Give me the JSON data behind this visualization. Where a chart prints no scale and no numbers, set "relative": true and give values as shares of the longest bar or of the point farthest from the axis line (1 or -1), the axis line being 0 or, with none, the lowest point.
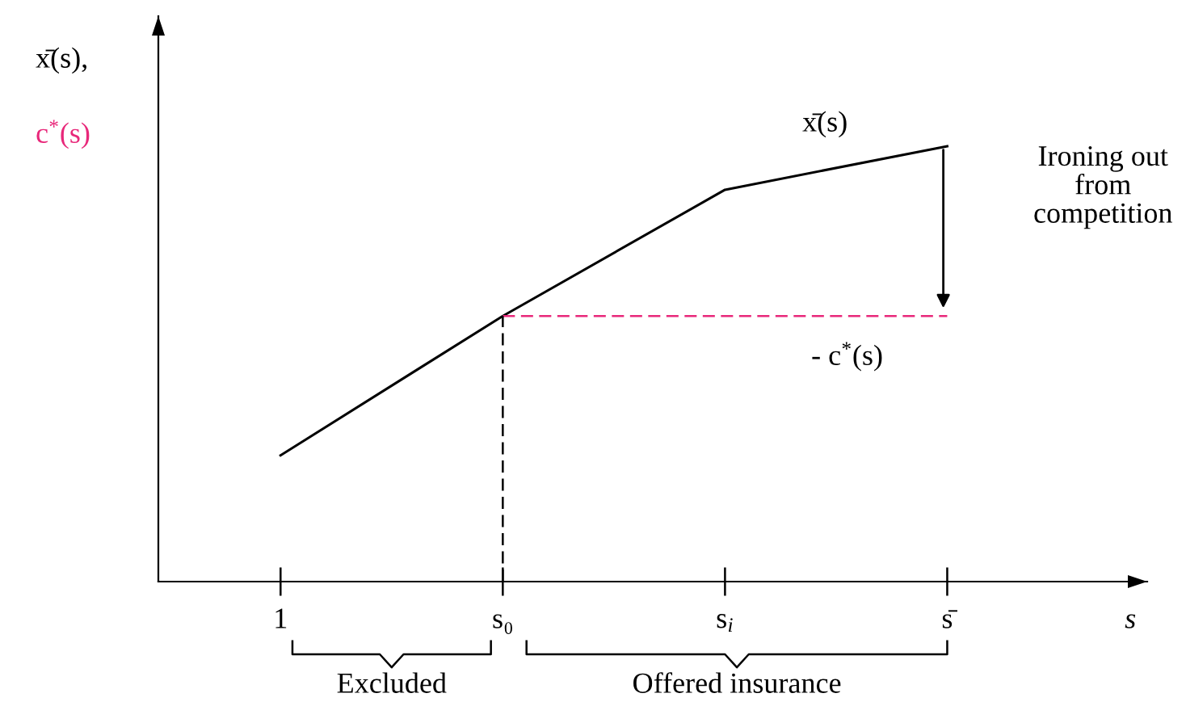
{
  "chart_data": {
    "type": "line",
    "relative": true,
    "xlabel": "s",
    "ylabel": "x̄(s),\nc$^{*}$(s)",
    "categories": [
      "1",
      "s₀",
      "s$_{i}$",
      "s̄"
    ],
    "series": [
      {
        "name": "x̄(s)",
        "color": "#000000",
        "values": [
          0.29,
          0.61,
          0.9,
          1.0
        ],
        "line_style": "solid"
      },
      {
        "name": "- c$^{*}$(s)",
        "color": "#e8287a",
        "values": [
          null,
          0.61,
          0.61,
          0.61
        ],
        "line_style": "dashed"
      }
    ],
    "ref_lines": [
      {
        "axis": "x",
        "value": "s₀",
        "color": "#000000",
        "line_style": "dashed"
      }
    ],
    "annotations": [
      "Ironing out\nfrom\ncompetition",
      "Excluded",
      "Offered insurance"
    ],
    "grid": false,
    "legend": false,
    "marker": "none"
  }
}
